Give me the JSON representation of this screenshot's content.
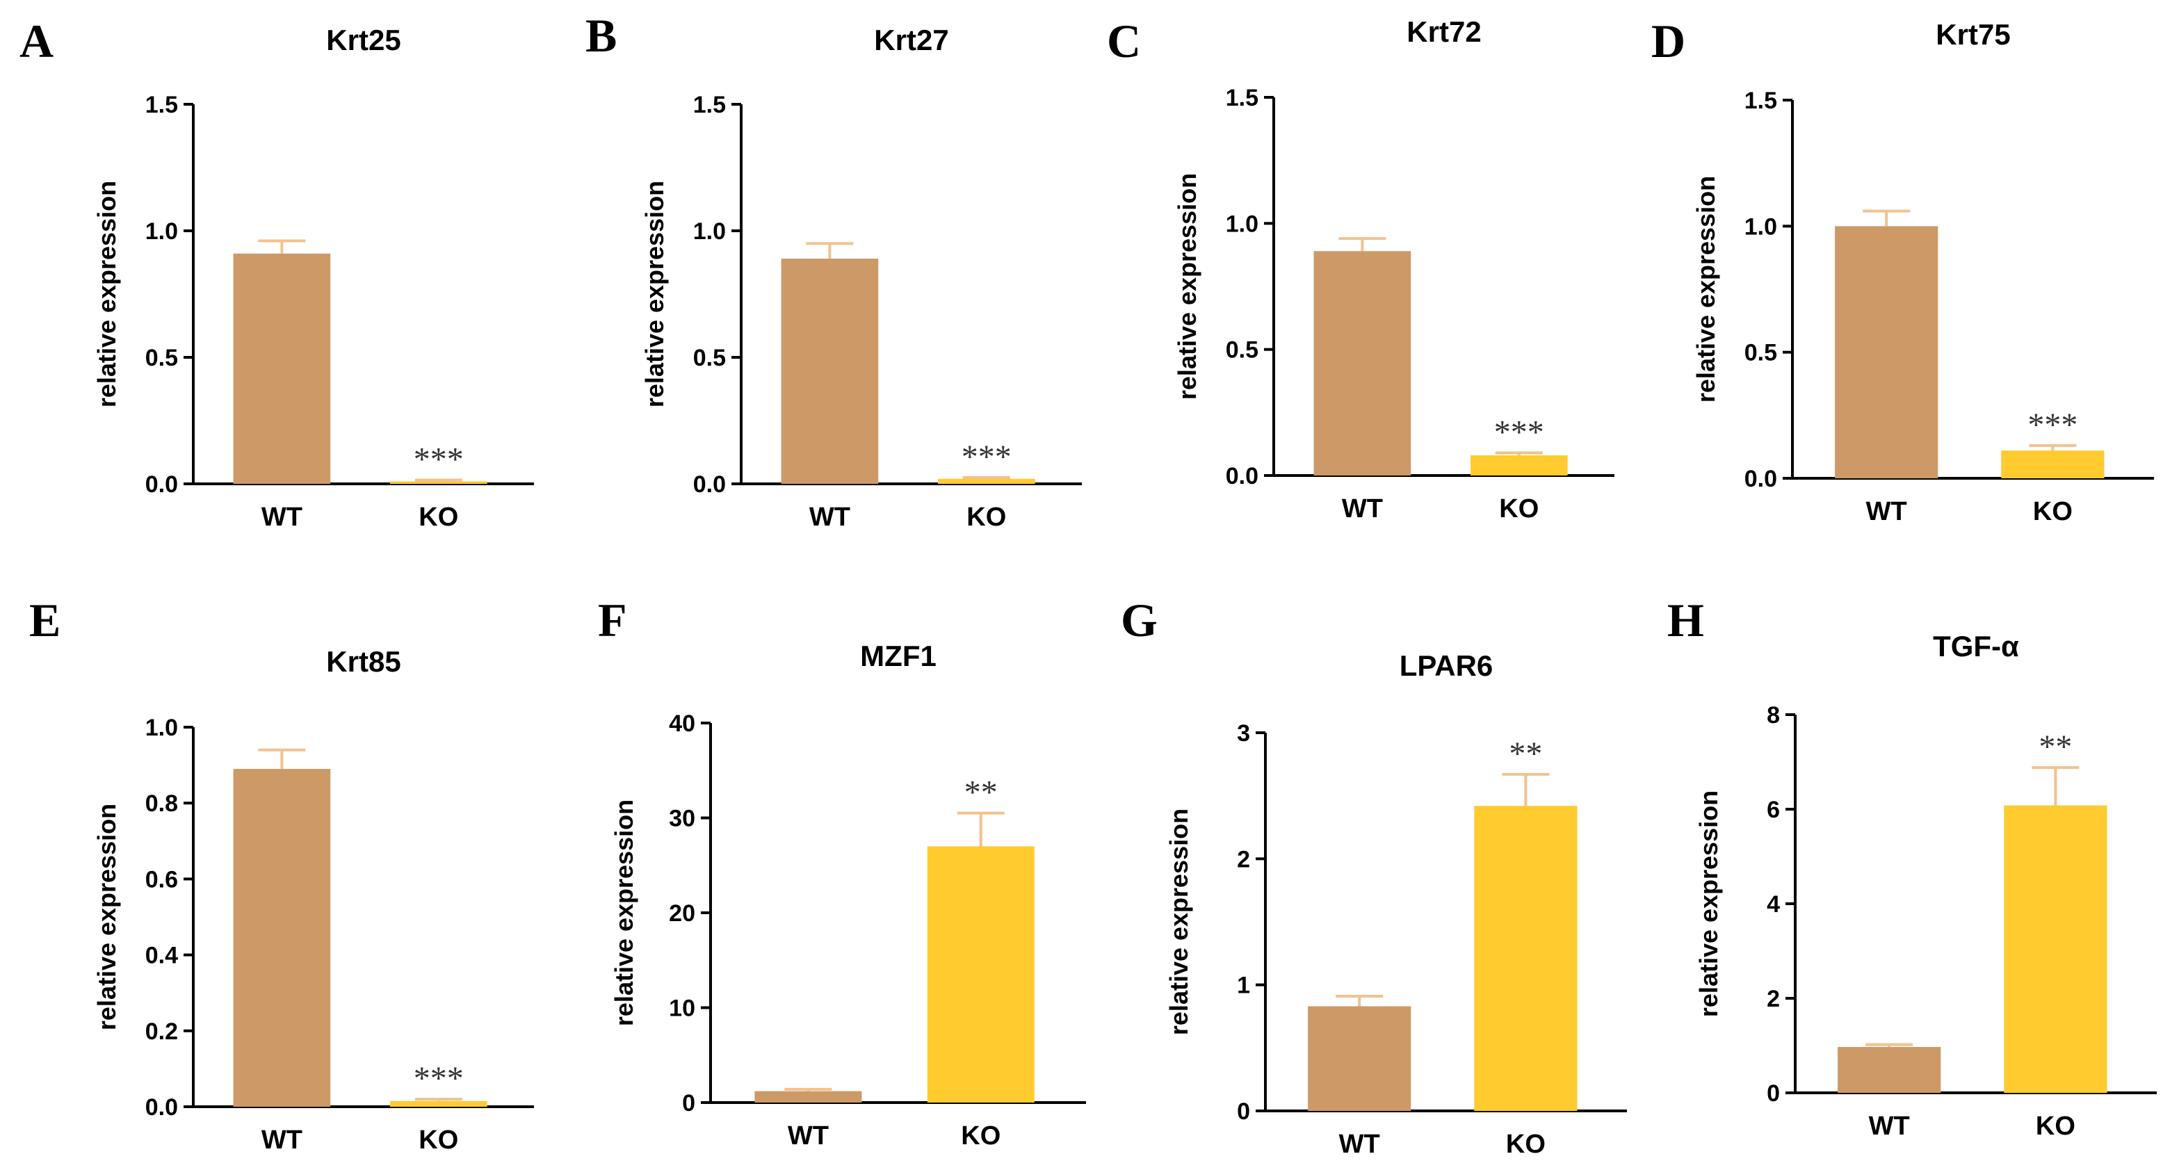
{
  "colors": {
    "wt": "#CD9966",
    "ko": "#FFCB2E",
    "error_bar": "#F2C28E",
    "axis": "#000000"
  },
  "chart_data": [
    {
      "panel": "A",
      "type": "bar",
      "title": "Krt25",
      "ylabel": "relative expression",
      "ylim": [
        0,
        1.5
      ],
      "yticks": [
        "0.0",
        "0.5",
        "1.0",
        "1.5"
      ],
      "categories": [
        "WT",
        "KO"
      ],
      "values": [
        0.91,
        0.01
      ],
      "errors": [
        0.05,
        0.005
      ],
      "significance": [
        "",
        "***"
      ]
    },
    {
      "panel": "B",
      "type": "bar",
      "title": "Krt27",
      "ylabel": "relative expression",
      "ylim": [
        0,
        1.5
      ],
      "yticks": [
        "0.0",
        "0.5",
        "1.0",
        "1.5"
      ],
      "categories": [
        "WT",
        "KO"
      ],
      "values": [
        0.89,
        0.02
      ],
      "errors": [
        0.06,
        0.005
      ],
      "significance": [
        "",
        "***"
      ]
    },
    {
      "panel": "C",
      "type": "bar",
      "title": "Krt72",
      "ylabel": "relative expression",
      "ylim": [
        0,
        1.5
      ],
      "yticks": [
        "0.0",
        "0.5",
        "1.0",
        "1.5"
      ],
      "categories": [
        "WT",
        "KO"
      ],
      "values": [
        0.89,
        0.08
      ],
      "errors": [
        0.05,
        0.01
      ],
      "significance": [
        "",
        "***"
      ]
    },
    {
      "panel": "D",
      "type": "bar",
      "title": "Krt75",
      "ylabel": "relative expression",
      "ylim": [
        0,
        1.5
      ],
      "yticks": [
        "0.0",
        "0.5",
        "1.0",
        "1.5"
      ],
      "categories": [
        "WT",
        "KO"
      ],
      "values": [
        1.0,
        0.11
      ],
      "errors": [
        0.06,
        0.02
      ],
      "significance": [
        "",
        "***"
      ]
    },
    {
      "panel": "E",
      "type": "bar",
      "title": "Krt85",
      "ylabel": "relative expression",
      "ylim": [
        0,
        1.0
      ],
      "yticks": [
        "0.0",
        "0.2",
        "0.4",
        "0.6",
        "0.8",
        "1.0"
      ],
      "categories": [
        "WT",
        "KO"
      ],
      "values": [
        0.89,
        0.015
      ],
      "errors": [
        0.05,
        0.005
      ],
      "significance": [
        "",
        "***"
      ]
    },
    {
      "panel": "F",
      "type": "bar",
      "title": "MZF1",
      "ylabel": "relative expression",
      "ylim": [
        0,
        40
      ],
      "yticks": [
        "0",
        "10",
        "20",
        "30",
        "40"
      ],
      "categories": [
        "WT",
        "KO"
      ],
      "values": [
        1.2,
        27.0
      ],
      "errors": [
        0.2,
        3.5
      ],
      "significance": [
        "",
        "**"
      ]
    },
    {
      "panel": "G",
      "type": "bar",
      "title": "LPAR6",
      "ylabel": "relative expression",
      "ylim": [
        0,
        3
      ],
      "yticks": [
        "0",
        "1",
        "2",
        "3"
      ],
      "categories": [
        "WT",
        "KO"
      ],
      "values": [
        0.83,
        2.42
      ],
      "errors": [
        0.08,
        0.25
      ],
      "significance": [
        "",
        "**"
      ]
    },
    {
      "panel": "H",
      "type": "bar",
      "title": "TGF-α",
      "ylabel": "relative expression",
      "ylim": [
        0,
        8
      ],
      "yticks": [
        "0",
        "2",
        "4",
        "6",
        "8"
      ],
      "categories": [
        "WT",
        "KO"
      ],
      "values": [
        0.97,
        6.08
      ],
      "errors": [
        0.05,
        0.8
      ],
      "significance": [
        "",
        "**"
      ]
    }
  ]
}
